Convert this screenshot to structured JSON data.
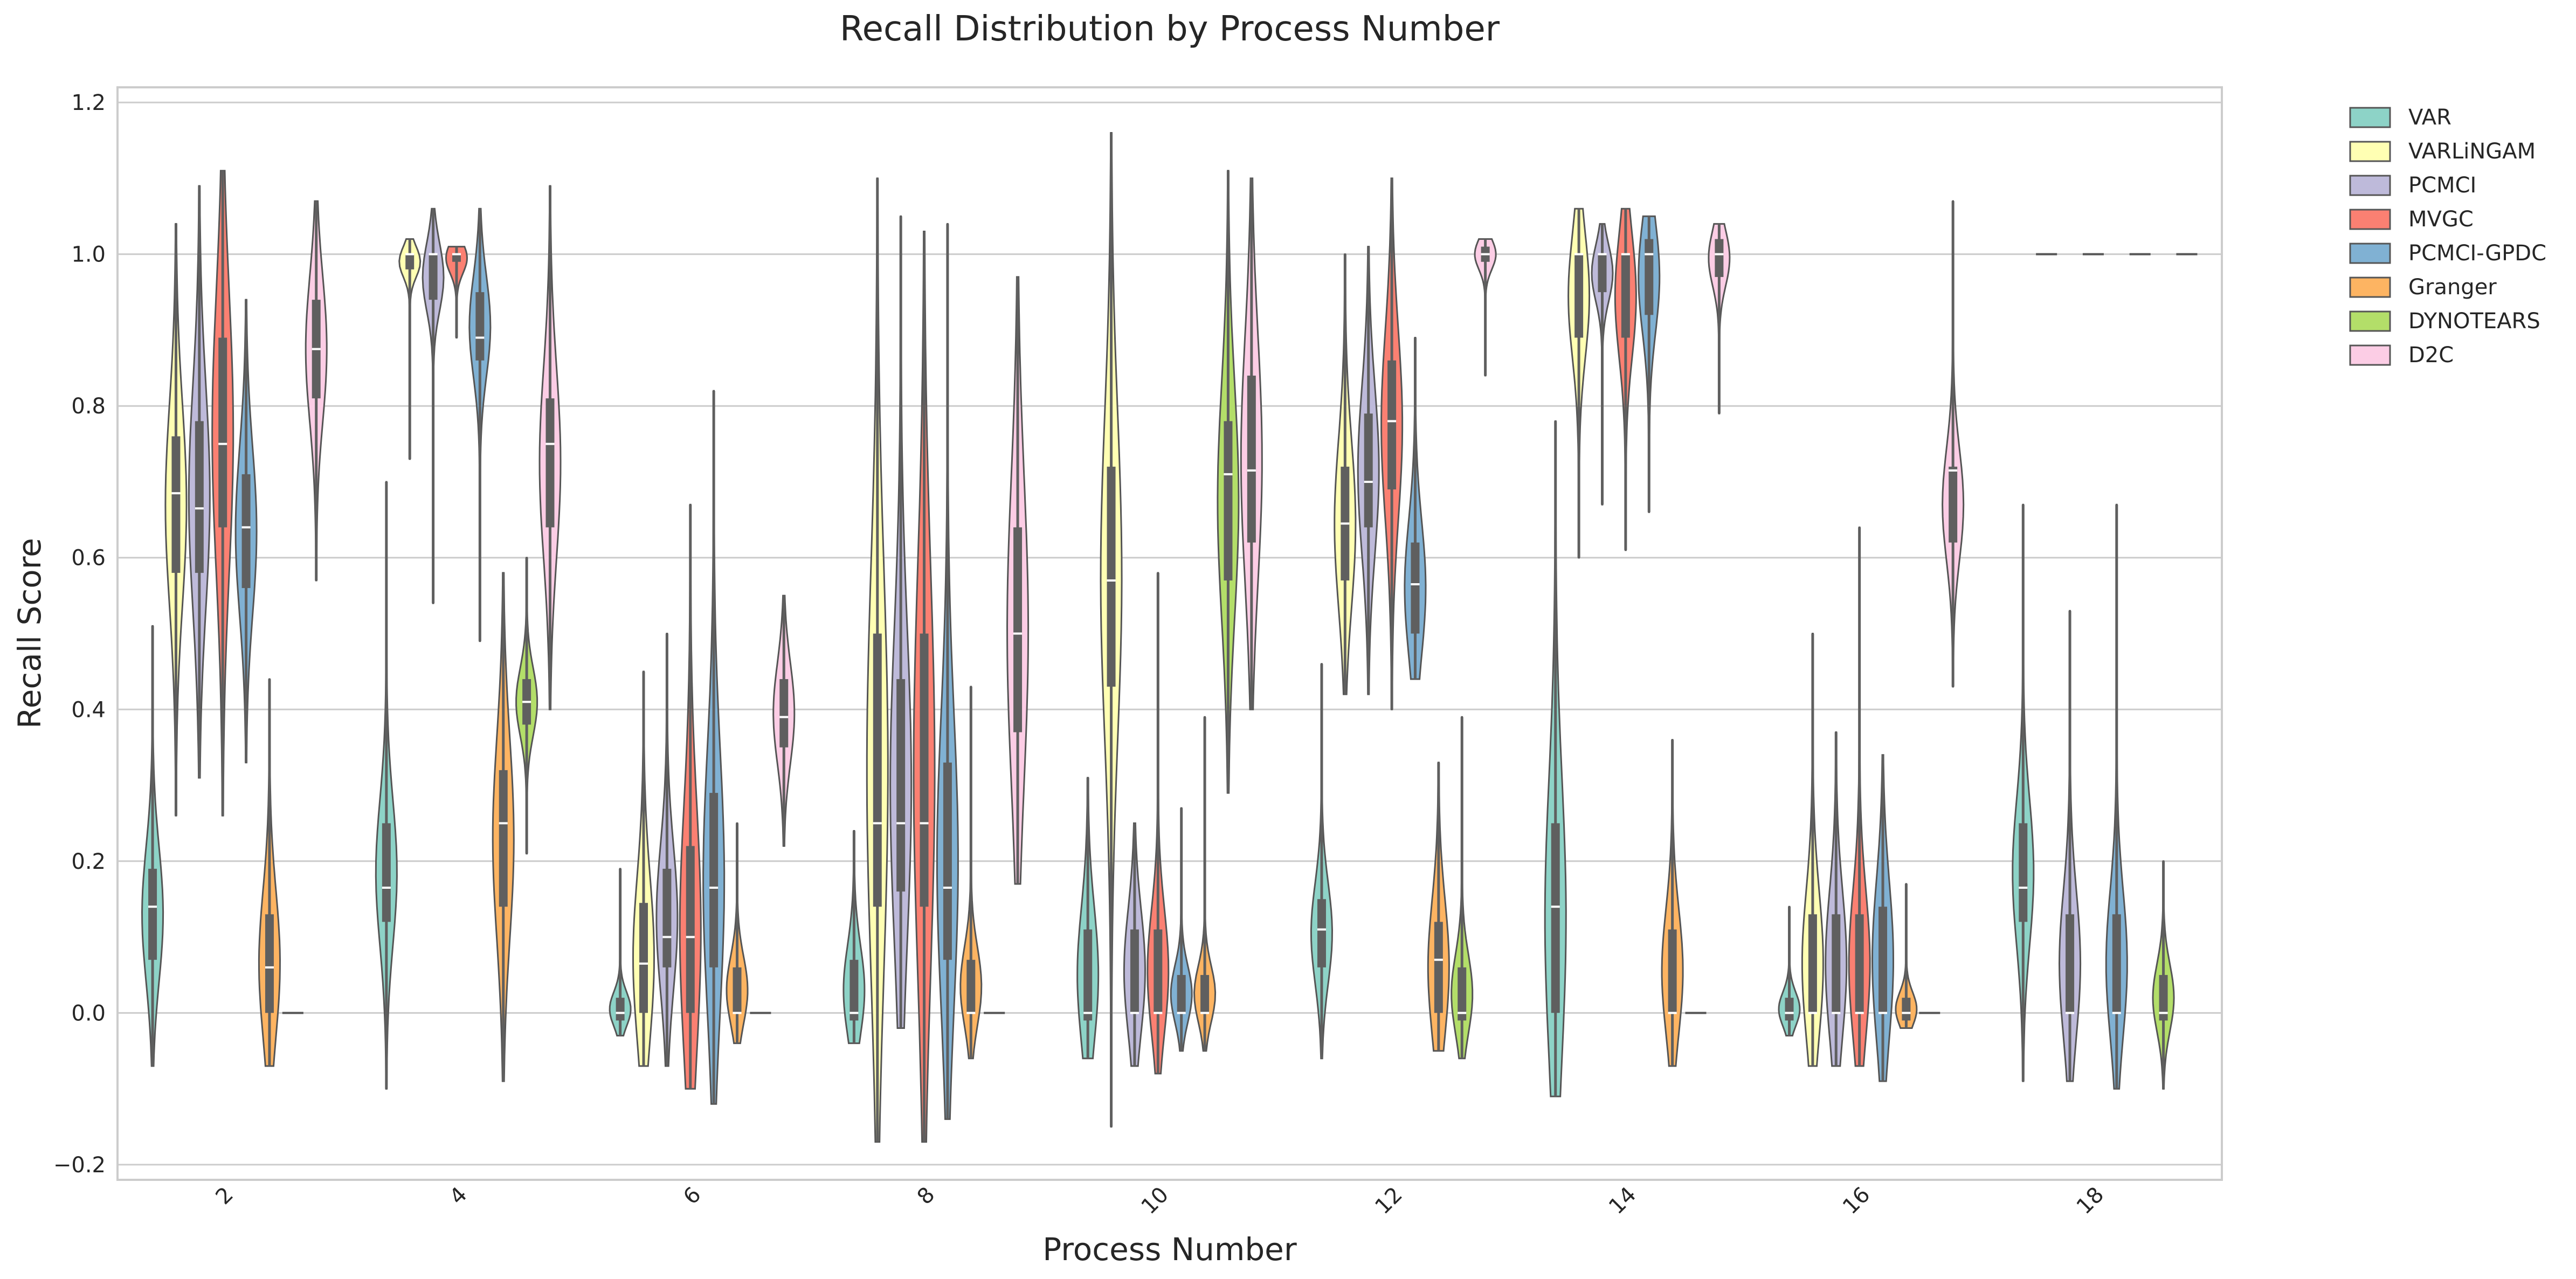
{
  "chart_data": {
    "type": "violin",
    "title": "Recall Distribution by Process Number",
    "xlabel": "Process Number",
    "ylabel": "Recall Score",
    "categories": [
      "2",
      "4",
      "6",
      "8",
      "10",
      "12",
      "14",
      "16",
      "18"
    ],
    "ylim": [
      -0.22,
      1.22
    ],
    "yticks": [
      -0.2,
      0.0,
      0.2,
      0.4,
      0.6,
      0.8,
      1.0,
      1.2
    ],
    "ytick_labels": [
      "−0.2",
      "0.0",
      "0.2",
      "0.4",
      "0.6",
      "0.8",
      "1.0",
      "1.2"
    ],
    "grid": "horizontal",
    "legend_position": "outside-right",
    "colors": {
      "VAR": "#8dd3c7",
      "VARLiNGAM": "#ffffb3",
      "PCMCI": "#bebada",
      "MVGC": "#fb8072",
      "PCMCI-GPDC": "#80b1d3",
      "Granger": "#fdb462",
      "DYNOTEARS": "#b3de69",
      "D2C": "#fccde5"
    },
    "series": [
      {
        "name": "VAR",
        "values": [
          {
            "x": "2",
            "min": -0.07,
            "q1": 0.07,
            "median": 0.14,
            "q3": 0.19,
            "max": 0.51
          },
          {
            "x": "4",
            "min": -0.1,
            "q1": 0.12,
            "median": 0.165,
            "q3": 0.25,
            "max": 0.7
          },
          {
            "x": "6",
            "min": -0.03,
            "q1": -0.01,
            "median": 0.0,
            "q3": 0.02,
            "max": 0.19
          },
          {
            "x": "8",
            "min": -0.04,
            "q1": -0.01,
            "median": 0.0,
            "q3": 0.07,
            "max": 0.24
          },
          {
            "x": "10",
            "min": -0.06,
            "q1": -0.01,
            "median": 0.0,
            "q3": 0.11,
            "max": 0.31
          },
          {
            "x": "12",
            "min": -0.06,
            "q1": 0.06,
            "median": 0.11,
            "q3": 0.15,
            "max": 0.46
          },
          {
            "x": "14",
            "min": -0.11,
            "q1": 0.0,
            "median": 0.14,
            "q3": 0.25,
            "max": 0.78
          },
          {
            "x": "16",
            "min": -0.03,
            "q1": -0.01,
            "median": 0.0,
            "q3": 0.02,
            "max": 0.14
          },
          {
            "x": "18",
            "min": -0.09,
            "q1": 0.12,
            "median": 0.165,
            "q3": 0.25,
            "max": 0.67
          }
        ]
      },
      {
        "name": "VARLiNGAM",
        "values": [
          {
            "x": "2",
            "min": 0.26,
            "q1": 0.58,
            "median": 0.685,
            "q3": 0.76,
            "max": 1.04
          },
          {
            "x": "4",
            "min": 0.73,
            "q1": 0.98,
            "median": 1.0,
            "q3": 1.0,
            "max": 1.02
          },
          {
            "x": "6",
            "min": -0.07,
            "q1": 0.0,
            "median": 0.065,
            "q3": 0.145,
            "max": 0.45
          },
          {
            "x": "8",
            "min": -0.17,
            "q1": 0.14,
            "median": 0.25,
            "q3": 0.5,
            "max": 1.1
          },
          {
            "x": "10",
            "min": -0.15,
            "q1": 0.43,
            "median": 0.57,
            "q3": 0.72,
            "max": 1.16
          },
          {
            "x": "12",
            "min": 0.42,
            "q1": 0.57,
            "median": 0.645,
            "q3": 0.72,
            "max": 1.0
          },
          {
            "x": "14",
            "min": 0.6,
            "q1": 0.89,
            "median": 1.0,
            "q3": 1.0,
            "max": 1.06
          },
          {
            "x": "16",
            "min": -0.07,
            "q1": 0.0,
            "median": 0.0,
            "q3": 0.13,
            "max": 0.5
          },
          {
            "x": "18",
            "min": 1.0,
            "q1": 1.0,
            "median": 1.0,
            "q3": 1.0,
            "max": 1.0
          }
        ]
      },
      {
        "name": "PCMCI",
        "values": [
          {
            "x": "2",
            "min": 0.31,
            "q1": 0.58,
            "median": 0.665,
            "q3": 0.78,
            "max": 1.09
          },
          {
            "x": "4",
            "min": 0.54,
            "q1": 0.94,
            "median": 1.0,
            "q3": 1.0,
            "max": 1.06
          },
          {
            "x": "6",
            "min": -0.07,
            "q1": 0.06,
            "median": 0.1,
            "q3": 0.19,
            "max": 0.5
          },
          {
            "x": "8",
            "min": -0.02,
            "q1": 0.16,
            "median": 0.25,
            "q3": 0.44,
            "max": 1.05
          },
          {
            "x": "10",
            "min": -0.07,
            "q1": 0.0,
            "median": 0.0,
            "q3": 0.11,
            "max": 0.25
          },
          {
            "x": "12",
            "min": 0.42,
            "q1": 0.64,
            "median": 0.7,
            "q3": 0.79,
            "max": 1.01
          },
          {
            "x": "14",
            "min": 0.67,
            "q1": 0.95,
            "median": 1.0,
            "q3": 1.0,
            "max": 1.04
          },
          {
            "x": "16",
            "min": -0.07,
            "q1": 0.0,
            "median": 0.0,
            "q3": 0.13,
            "max": 0.37
          },
          {
            "x": "18",
            "min": -0.09,
            "q1": 0.0,
            "median": 0.0,
            "q3": 0.13,
            "max": 0.53
          }
        ]
      },
      {
        "name": "MVGC",
        "values": [
          {
            "x": "2",
            "min": 0.26,
            "q1": 0.64,
            "median": 0.75,
            "q3": 0.89,
            "max": 1.11
          },
          {
            "x": "4",
            "min": 0.89,
            "q1": 0.99,
            "median": 1.0,
            "q3": 1.0,
            "max": 1.01
          },
          {
            "x": "6",
            "min": -0.1,
            "q1": 0.0,
            "median": 0.1,
            "q3": 0.22,
            "max": 0.67
          },
          {
            "x": "8",
            "min": -0.17,
            "q1": 0.14,
            "median": 0.25,
            "q3": 0.5,
            "max": 1.03
          },
          {
            "x": "10",
            "min": -0.08,
            "q1": 0.0,
            "median": 0.0,
            "q3": 0.11,
            "max": 0.58
          },
          {
            "x": "12",
            "min": 0.4,
            "q1": 0.69,
            "median": 0.78,
            "q3": 0.86,
            "max": 1.1
          },
          {
            "x": "14",
            "min": 0.61,
            "q1": 0.89,
            "median": 1.0,
            "q3": 1.0,
            "max": 1.06
          },
          {
            "x": "16",
            "min": -0.07,
            "q1": 0.0,
            "median": 0.0,
            "q3": 0.13,
            "max": 0.64
          },
          {
            "x": "18",
            "min": 1.0,
            "q1": 1.0,
            "median": 1.0,
            "q3": 1.0,
            "max": 1.0
          }
        ]
      },
      {
        "name": "PCMCI-GPDC",
        "values": [
          {
            "x": "2",
            "min": 0.33,
            "q1": 0.56,
            "median": 0.64,
            "q3": 0.71,
            "max": 0.94
          },
          {
            "x": "4",
            "min": 0.49,
            "q1": 0.86,
            "median": 0.89,
            "q3": 0.95,
            "max": 1.06
          },
          {
            "x": "6",
            "min": -0.12,
            "q1": 0.06,
            "median": 0.165,
            "q3": 0.29,
            "max": 0.82
          },
          {
            "x": "8",
            "min": -0.14,
            "q1": 0.07,
            "median": 0.165,
            "q3": 0.33,
            "max": 1.04
          },
          {
            "x": "10",
            "min": -0.05,
            "q1": 0.0,
            "median": 0.0,
            "q3": 0.05,
            "max": 0.27
          },
          {
            "x": "12",
            "min": 0.44,
            "q1": 0.5,
            "median": 0.565,
            "q3": 0.62,
            "max": 0.89
          },
          {
            "x": "14",
            "min": 0.66,
            "q1": 0.92,
            "median": 1.0,
            "q3": 1.02,
            "max": 1.05
          },
          {
            "x": "16",
            "min": -0.09,
            "q1": 0.0,
            "median": 0.0,
            "q3": 0.14,
            "max": 0.34
          },
          {
            "x": "18",
            "min": -0.1,
            "q1": 0.0,
            "median": 0.0,
            "q3": 0.13,
            "max": 0.67
          }
        ]
      },
      {
        "name": "Granger",
        "values": [
          {
            "x": "2",
            "min": -0.07,
            "q1": 0.0,
            "median": 0.06,
            "q3": 0.13,
            "max": 0.44
          },
          {
            "x": "4",
            "min": -0.09,
            "q1": 0.14,
            "median": 0.25,
            "q3": 0.32,
            "max": 0.58
          },
          {
            "x": "6",
            "min": -0.04,
            "q1": 0.0,
            "median": 0.0,
            "q3": 0.06,
            "max": 0.25
          },
          {
            "x": "8",
            "min": -0.06,
            "q1": 0.0,
            "median": 0.0,
            "q3": 0.07,
            "max": 0.43
          },
          {
            "x": "10",
            "min": -0.05,
            "q1": 0.0,
            "median": 0.0,
            "q3": 0.05,
            "max": 0.39
          },
          {
            "x": "12",
            "min": -0.05,
            "q1": 0.0,
            "median": 0.07,
            "q3": 0.12,
            "max": 0.33
          },
          {
            "x": "14",
            "min": -0.07,
            "q1": 0.0,
            "median": 0.0,
            "q3": 0.11,
            "max": 0.36
          },
          {
            "x": "16",
            "min": -0.02,
            "q1": -0.01,
            "median": 0.0,
            "q3": 0.02,
            "max": 0.17
          },
          {
            "x": "18",
            "min": 1.0,
            "q1": 1.0,
            "median": 1.0,
            "q3": 1.0,
            "max": 1.0
          }
        ]
      },
      {
        "name": "DYNOTEARS",
        "values": [
          {
            "x": "2",
            "min": 0.0,
            "q1": 0.0,
            "median": 0.0,
            "q3": 0.0,
            "max": 0.0
          },
          {
            "x": "4",
            "min": 0.21,
            "q1": 0.38,
            "median": 0.41,
            "q3": 0.44,
            "max": 0.6
          },
          {
            "x": "6",
            "min": 0.0,
            "q1": 0.0,
            "median": 0.0,
            "q3": 0.0,
            "max": 0.0
          },
          {
            "x": "8",
            "min": 0.0,
            "q1": 0.0,
            "median": 0.0,
            "q3": 0.0,
            "max": 0.0
          },
          {
            "x": "10",
            "min": 0.29,
            "q1": 0.57,
            "median": 0.71,
            "q3": 0.78,
            "max": 1.11
          },
          {
            "x": "12",
            "min": -0.06,
            "q1": -0.01,
            "median": 0.0,
            "q3": 0.06,
            "max": 0.39
          },
          {
            "x": "14",
            "min": 0.0,
            "q1": 0.0,
            "median": 0.0,
            "q3": 0.0,
            "max": 0.0
          },
          {
            "x": "16",
            "min": 0.0,
            "q1": 0.0,
            "median": 0.0,
            "q3": 0.0,
            "max": 0.0
          },
          {
            "x": "18",
            "min": -0.1,
            "q1": -0.01,
            "median": 0.0,
            "q3": 0.05,
            "max": 0.2
          }
        ]
      },
      {
        "name": "D2C",
        "values": [
          {
            "x": "2",
            "min": 0.57,
            "q1": 0.81,
            "median": 0.875,
            "q3": 0.94,
            "max": 1.07
          },
          {
            "x": "4",
            "min": 0.4,
            "q1": 0.64,
            "median": 0.75,
            "q3": 0.81,
            "max": 1.09
          },
          {
            "x": "6",
            "min": 0.22,
            "q1": 0.35,
            "median": 0.39,
            "q3": 0.44,
            "max": 0.55
          },
          {
            "x": "8",
            "min": 0.17,
            "q1": 0.37,
            "median": 0.5,
            "q3": 0.64,
            "max": 0.97
          },
          {
            "x": "10",
            "min": 0.4,
            "q1": 0.62,
            "median": 0.715,
            "q3": 0.84,
            "max": 1.1
          },
          {
            "x": "12",
            "min": 0.84,
            "q1": 0.99,
            "median": 1.0,
            "q3": 1.01,
            "max": 1.02
          },
          {
            "x": "14",
            "min": 0.79,
            "q1": 0.97,
            "median": 1.0,
            "q3": 1.02,
            "max": 1.04
          },
          {
            "x": "16",
            "min": 0.43,
            "q1": 0.62,
            "median": 0.715,
            "q3": 0.72,
            "max": 1.07
          },
          {
            "x": "18",
            "min": 1.0,
            "q1": 1.0,
            "median": 1.0,
            "q3": 1.0,
            "max": 1.0
          }
        ]
      }
    ]
  }
}
